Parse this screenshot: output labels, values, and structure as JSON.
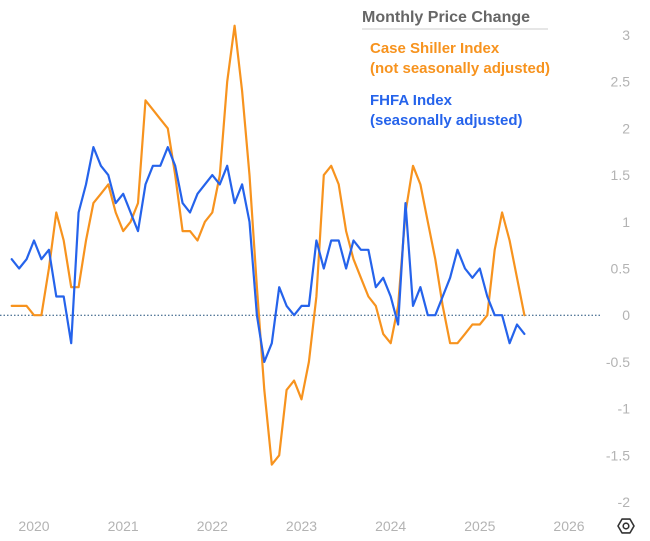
{
  "colors": {
    "case_shiller": "#f7931e",
    "fhfa": "#2563eb",
    "tick_label": "#b3b3b3",
    "legend_title": "#666666",
    "zero_line": "#1f4e79"
  },
  "legend": {
    "title": "Monthly Price Change",
    "case_shiller_line1": "Case Shiller Index",
    "case_shiller_line2": "(not seasonally adjusted)",
    "fhfa_line1": "FHFA Index",
    "fhfa_line2": "(seasonally adjusted)"
  },
  "settings_icon": "gear-icon",
  "chart_data": {
    "type": "line",
    "grid": false,
    "reference_line": 0,
    "x_label_years": [
      "2020",
      "2021",
      "2022",
      "2023",
      "2024",
      "2025",
      "2026"
    ],
    "y_ticks": [
      "3",
      "2.5",
      "2",
      "1.5",
      "1",
      "0.5",
      "0",
      "-0.5",
      "-1",
      "-1.5",
      "-2"
    ],
    "xlim": [
      "2019-10",
      "2026-03"
    ],
    "ylim": [
      -2,
      3.2
    ],
    "series": [
      {
        "name": "Case Shiller Index (not seasonally adjusted)",
        "color": "#f7931e",
        "points": [
          [
            "2019-10",
            0.1
          ],
          [
            "2019-11",
            0.1
          ],
          [
            "2019-12",
            0.1
          ],
          [
            "2020-01",
            0.0
          ],
          [
            "2020-02",
            0.0
          ],
          [
            "2020-03",
            0.5
          ],
          [
            "2020-04",
            1.1
          ],
          [
            "2020-05",
            0.8
          ],
          [
            "2020-06",
            0.3
          ],
          [
            "2020-07",
            0.3
          ],
          [
            "2020-08",
            0.8
          ],
          [
            "2020-09",
            1.2
          ],
          [
            "2020-10",
            1.3
          ],
          [
            "2020-11",
            1.4
          ],
          [
            "2020-12",
            1.1
          ],
          [
            "2021-01",
            0.9
          ],
          [
            "2021-02",
            1.0
          ],
          [
            "2021-03",
            1.2
          ],
          [
            "2021-04",
            2.3
          ],
          [
            "2021-05",
            2.2
          ],
          [
            "2021-06",
            2.1
          ],
          [
            "2021-07",
            2.0
          ],
          [
            "2021-08",
            1.5
          ],
          [
            "2021-09",
            0.9
          ],
          [
            "2021-10",
            0.9
          ],
          [
            "2021-11",
            0.8
          ],
          [
            "2021-12",
            1.0
          ],
          [
            "2022-01",
            1.1
          ],
          [
            "2022-02",
            1.5
          ],
          [
            "2022-03",
            2.5
          ],
          [
            "2022-04",
            3.1
          ],
          [
            "2022-05",
            2.4
          ],
          [
            "2022-06",
            1.5
          ],
          [
            "2022-07",
            0.3
          ],
          [
            "2022-08",
            -0.8
          ],
          [
            "2022-09",
            -1.6
          ],
          [
            "2022-10",
            -1.5
          ],
          [
            "2022-11",
            -0.8
          ],
          [
            "2022-12",
            -0.7
          ],
          [
            "2023-01",
            -0.9
          ],
          [
            "2023-02",
            -0.5
          ],
          [
            "2023-03",
            0.2
          ],
          [
            "2023-04",
            1.5
          ],
          [
            "2023-05",
            1.6
          ],
          [
            "2023-06",
            1.4
          ],
          [
            "2023-07",
            0.9
          ],
          [
            "2023-08",
            0.6
          ],
          [
            "2023-09",
            0.4
          ],
          [
            "2023-10",
            0.2
          ],
          [
            "2023-11",
            0.1
          ],
          [
            "2023-12",
            -0.2
          ],
          [
            "2024-01",
            -0.3
          ],
          [
            "2024-02",
            0.1
          ],
          [
            "2024-03",
            1.1
          ],
          [
            "2024-04",
            1.6
          ],
          [
            "2024-05",
            1.4
          ],
          [
            "2024-06",
            1.0
          ],
          [
            "2024-07",
            0.6
          ],
          [
            "2024-08",
            0.1
          ],
          [
            "2024-09",
            -0.3
          ],
          [
            "2024-10",
            -0.3
          ],
          [
            "2024-11",
            -0.2
          ],
          [
            "2024-12",
            -0.1
          ],
          [
            "2025-01",
            -0.1
          ],
          [
            "2025-02",
            0.0
          ],
          [
            "2025-03",
            0.7
          ],
          [
            "2025-04",
            1.1
          ],
          [
            "2025-05",
            0.8
          ],
          [
            "2025-06",
            0.4
          ],
          [
            "2025-07",
            0.0
          ]
        ]
      },
      {
        "name": "FHFA Index (seasonally adjusted)",
        "color": "#2563eb",
        "points": [
          [
            "2019-10",
            0.6
          ],
          [
            "2019-11",
            0.5
          ],
          [
            "2019-12",
            0.6
          ],
          [
            "2020-01",
            0.8
          ],
          [
            "2020-02",
            0.6
          ],
          [
            "2020-03",
            0.7
          ],
          [
            "2020-04",
            0.2
          ],
          [
            "2020-05",
            0.2
          ],
          [
            "2020-06",
            -0.3
          ],
          [
            "2020-07",
            1.1
          ],
          [
            "2020-08",
            1.4
          ],
          [
            "2020-09",
            1.8
          ],
          [
            "2020-10",
            1.6
          ],
          [
            "2020-11",
            1.5
          ],
          [
            "2020-12",
            1.2
          ],
          [
            "2021-01",
            1.3
          ],
          [
            "2021-02",
            1.1
          ],
          [
            "2021-03",
            0.9
          ],
          [
            "2021-04",
            1.4
          ],
          [
            "2021-05",
            1.6
          ],
          [
            "2021-06",
            1.6
          ],
          [
            "2021-07",
            1.8
          ],
          [
            "2021-08",
            1.6
          ],
          [
            "2021-09",
            1.2
          ],
          [
            "2021-10",
            1.1
          ],
          [
            "2021-11",
            1.3
          ],
          [
            "2021-12",
            1.4
          ],
          [
            "2022-01",
            1.5
          ],
          [
            "2022-02",
            1.4
          ],
          [
            "2022-03",
            1.6
          ],
          [
            "2022-04",
            1.2
          ],
          [
            "2022-05",
            1.4
          ],
          [
            "2022-06",
            1.0
          ],
          [
            "2022-07",
            0.0
          ],
          [
            "2022-08",
            -0.5
          ],
          [
            "2022-09",
            -0.3
          ],
          [
            "2022-10",
            0.3
          ],
          [
            "2022-11",
            0.1
          ],
          [
            "2022-12",
            0.0
          ],
          [
            "2023-01",
            0.1
          ],
          [
            "2023-02",
            0.1
          ],
          [
            "2023-03",
            0.8
          ],
          [
            "2023-04",
            0.5
          ],
          [
            "2023-05",
            0.8
          ],
          [
            "2023-06",
            0.8
          ],
          [
            "2023-07",
            0.5
          ],
          [
            "2023-08",
            0.8
          ],
          [
            "2023-09",
            0.7
          ],
          [
            "2023-10",
            0.7
          ],
          [
            "2023-11",
            0.3
          ],
          [
            "2023-12",
            0.4
          ],
          [
            "2024-01",
            0.2
          ],
          [
            "2024-02",
            -0.1
          ],
          [
            "2024-03",
            1.2
          ],
          [
            "2024-04",
            0.1
          ],
          [
            "2024-05",
            0.3
          ],
          [
            "2024-06",
            0.0
          ],
          [
            "2024-07",
            0.0
          ],
          [
            "2024-08",
            0.2
          ],
          [
            "2024-09",
            0.4
          ],
          [
            "2024-10",
            0.7
          ],
          [
            "2024-11",
            0.5
          ],
          [
            "2024-12",
            0.4
          ],
          [
            "2025-01",
            0.5
          ],
          [
            "2025-02",
            0.2
          ],
          [
            "2025-03",
            0.0
          ],
          [
            "2025-04",
            0.0
          ],
          [
            "2025-05",
            -0.3
          ],
          [
            "2025-06",
            -0.1
          ],
          [
            "2025-07",
            -0.2
          ]
        ]
      }
    ]
  }
}
